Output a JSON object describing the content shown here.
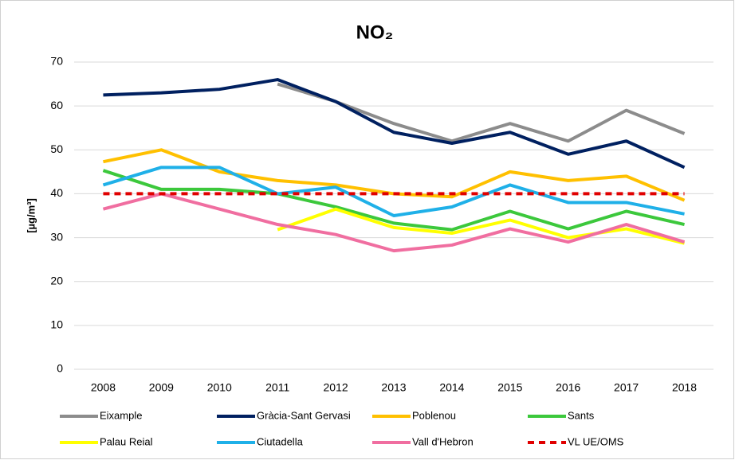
{
  "chart_data": {
    "type": "line",
    "title": "NO₂",
    "y_label": "[µg/m³]",
    "categories": [
      "2008",
      "2009",
      "2010",
      "2011",
      "2012",
      "2013",
      "2014",
      "2015",
      "2016",
      "2017",
      "2018"
    ],
    "ylim": [
      0,
      70
    ],
    "yticks": [
      0,
      10,
      20,
      30,
      40,
      50,
      60,
      70
    ],
    "grid": true,
    "legend": "bottom",
    "series": [
      {
        "name": "Eixample",
        "color": "#8c8c8c",
        "values": [
          null,
          null,
          null,
          65,
          61,
          56,
          52,
          56,
          52,
          59,
          53.7
        ]
      },
      {
        "name": "Gràcia-Sant Gervasi",
        "color": "#002060",
        "values": [
          62.5,
          63,
          63.8,
          66,
          61,
          54,
          51.5,
          54,
          49,
          52,
          46
        ]
      },
      {
        "name": "Poblenou",
        "color": "#ffc000",
        "values": [
          47.3,
          50,
          45,
          43,
          42,
          40,
          39.3,
          45,
          43,
          44,
          38.5
        ]
      },
      {
        "name": "Sants",
        "color": "#3cc83c",
        "values": [
          45.3,
          41,
          41,
          40,
          37,
          33.3,
          31.8,
          36,
          32,
          36,
          33
        ]
      },
      {
        "name": "Palau Reial",
        "color": "#ffff00",
        "values": [
          null,
          null,
          null,
          31.8,
          36.5,
          32.3,
          31,
          34,
          30,
          32,
          28.7
        ]
      },
      {
        "name": "Ciutadella",
        "color": "#1fb0e8",
        "values": [
          42,
          46,
          46,
          40,
          41.5,
          35,
          37,
          42,
          38,
          38,
          35.4
        ]
      },
      {
        "name": "Vall d'Hebron",
        "color": "#f06ea0",
        "values": [
          36.5,
          40,
          36.5,
          33,
          30.7,
          27,
          28.3,
          32,
          29,
          33,
          29
        ]
      },
      {
        "name": "VL UE/OMS",
        "color": "#e00000",
        "dash": true,
        "values": [
          40,
          40,
          40,
          40,
          40,
          40,
          40,
          40,
          40,
          40,
          40
        ]
      }
    ]
  }
}
